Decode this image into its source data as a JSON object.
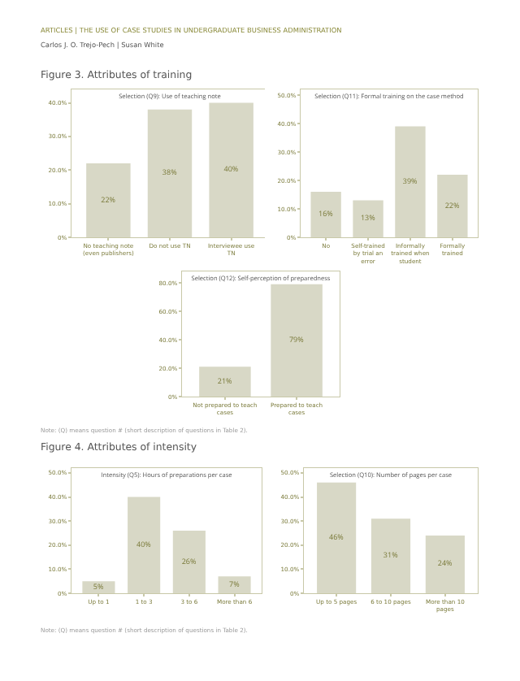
{
  "chart_data": [
    {
      "type": "bar",
      "title": "Selection (Q9): Use of teaching note",
      "categories": [
        "No teaching note (even publishers)",
        "Do not use TN",
        "Interviewee use TN"
      ],
      "values": [
        22,
        38,
        40
      ],
      "value_labels": [
        "22%",
        "38%",
        "40%"
      ],
      "color": "#d8d8c6",
      "ylim": [
        0,
        44
      ],
      "yticks": [
        {
          "value": 0,
          "label": "0%"
        },
        {
          "value": 10,
          "label": "10.0%"
        },
        {
          "value": 20,
          "label": "20.0%"
        },
        {
          "value": 30,
          "label": "30.0%"
        },
        {
          "value": 40,
          "label": "40.0%"
        }
      ],
      "annotations": [
        "ARTICLES | THE USE OF CASE STUDIES IN UNDERGRADUATE BUSINESS ADMINISTRATION",
        "Carlos J. O. Trejo-Pech | Susan White",
        "Figure 3. Attributes of training"
      ]
    },
    {
      "type": "bar",
      "title": "Selection (Q11): Formal training on the case method",
      "categories": [
        "No",
        "Self-trained by trial an error",
        "Informally trained when student",
        "Formally trained"
      ],
      "values": [
        16,
        13,
        39,
        22
      ],
      "value_labels": [
        "16%",
        "13%",
        "39%",
        "22%"
      ],
      "color": "#d8d8c6",
      "ylim": [
        0,
        52
      ],
      "yticks": [
        {
          "value": 0,
          "label": "0%"
        },
        {
          "value": 10,
          "label": "10.0%"
        },
        {
          "value": 20,
          "label": "20.0%"
        },
        {
          "value": 30,
          "label": "30.0%"
        },
        {
          "value": 40,
          "label": "40.0%"
        },
        {
          "value": 50,
          "label": "50.0%"
        }
      ]
    },
    {
      "type": "bar",
      "title": "Selection (Q12): Self-perception of preparedness",
      "categories": [
        "Not prepared to teach cases",
        "Prepared to teach cases"
      ],
      "values": [
        21,
        79
      ],
      "value_labels": [
        "21%",
        "79%"
      ],
      "color": "#d8d8c6",
      "ylim": [
        0,
        88
      ],
      "yticks": [
        {
          "value": 0,
          "label": "0%"
        },
        {
          "value": 20,
          "label": "20.0%"
        },
        {
          "value": 40,
          "label": "40.0%"
        },
        {
          "value": 60,
          "label": "60.0%"
        },
        {
          "value": 80,
          "label": "80.0%"
        }
      ],
      "annotations": [
        "Note: (Q) means question # (short description of questions in Table 2)."
      ]
    },
    {
      "type": "bar",
      "title": "Intensity (Q5): Hours of preparations per case",
      "categories": [
        "Up to 1",
        "1 to 3",
        "3 to 6",
        "More than 6"
      ],
      "values": [
        5,
        40,
        26,
        7
      ],
      "value_labels": [
        "5%",
        "40%",
        "26%",
        "7%"
      ],
      "color": "#d8d8c6",
      "ylim": [
        0,
        52
      ],
      "yticks": [
        {
          "value": 0,
          "label": "0%"
        },
        {
          "value": 10,
          "label": "10.0%"
        },
        {
          "value": 20,
          "label": "20.0%"
        },
        {
          "value": 30,
          "label": "30.0%"
        },
        {
          "value": 40,
          "label": "40.0%"
        },
        {
          "value": 50,
          "label": "50.0%"
        }
      ],
      "annotations": [
        "Figure 4. Attributes of intensity"
      ]
    },
    {
      "type": "bar",
      "title": "Selection (Q10): Number of pages per case",
      "categories": [
        "Up to 5 pages",
        "6 to 10 pages",
        "More than 10 pages"
      ],
      "values": [
        46,
        31,
        24
      ],
      "value_labels": [
        "46%",
        "31%",
        "24%"
      ],
      "color": "#d8d8c6",
      "ylim": [
        0,
        52
      ],
      "yticks": [
        {
          "value": 0,
          "label": "0%"
        },
        {
          "value": 10,
          "label": "10.0%"
        },
        {
          "value": 20,
          "label": "20.0%"
        },
        {
          "value": 30,
          "label": "30.0%"
        },
        {
          "value": 40,
          "label": "40.0%"
        },
        {
          "value": 50,
          "label": "50.0%"
        }
      ],
      "annotations": [
        "Note: (Q) means question # (short description of questions in Table 2)."
      ]
    }
  ]
}
